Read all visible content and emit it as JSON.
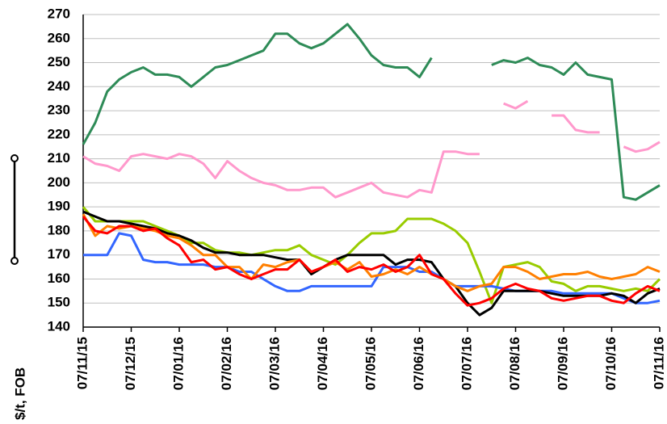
{
  "chart_data": {
    "type": "line",
    "y_label": "$/t, FOB",
    "categories": [
      "07/11/15",
      null,
      null,
      null,
      "07/12/15",
      null,
      null,
      null,
      "07/01/16",
      null,
      null,
      null,
      "07/02/16",
      null,
      null,
      null,
      "07/03/16",
      null,
      null,
      null,
      "07/04/16",
      null,
      null,
      null,
      "07/05/16",
      null,
      null,
      null,
      "07/06/16",
      null,
      null,
      null,
      "07/07/16",
      null,
      null,
      null,
      "07/08/16",
      null,
      null,
      null,
      "07/09/16",
      null,
      null,
      null,
      "07/10/16",
      null,
      null,
      null,
      "07/11/16"
    ],
    "ylim": [
      140,
      270
    ],
    "yticks": [
      140,
      150,
      160,
      170,
      180,
      190,
      200,
      210,
      220,
      230,
      240,
      250,
      260,
      270
    ],
    "grid": true,
    "series": [
      {
        "color": "#2e8b57",
        "values": [
          216,
          225,
          238,
          243,
          246,
          248,
          245,
          245,
          244,
          240,
          244,
          248,
          249,
          251,
          253,
          255,
          262,
          262,
          258,
          256,
          258,
          262,
          266,
          260,
          253,
          249,
          248,
          248,
          244,
          252,
          null,
          null,
          null,
          null,
          249,
          251,
          250,
          252,
          249,
          248,
          245,
          250,
          245,
          244,
          243,
          194,
          193,
          196,
          199
        ]
      },
      {
        "color": "#ff99cc",
        "values": [
          211,
          208,
          207,
          205,
          211,
          212,
          211,
          210,
          212,
          211,
          208,
          202,
          209,
          205,
          202,
          200,
          199,
          197,
          197,
          198,
          198,
          194,
          196,
          198,
          200,
          196,
          195,
          194,
          197,
          196,
          213,
          213,
          212,
          212,
          null,
          233,
          231,
          234,
          null,
          228,
          228,
          222,
          221,
          221,
          null,
          215,
          213,
          214,
          217
        ]
      },
      {
        "color": "#99cc00",
        "values": [
          190,
          184,
          184,
          184,
          184,
          184,
          182,
          180,
          178,
          175,
          175,
          172,
          171,
          171,
          170,
          171,
          172,
          172,
          174,
          170,
          168,
          166,
          170,
          175,
          179,
          179,
          180,
          185,
          185,
          185,
          183,
          180,
          175,
          163,
          150,
          165,
          166,
          167,
          165,
          159,
          158,
          155,
          157,
          157,
          156,
          155,
          156,
          155,
          160
        ]
      },
      {
        "color": "#3366ff",
        "values": [
          170,
          170,
          170,
          179,
          178,
          168,
          167,
          167,
          166,
          166,
          166,
          165,
          165,
          163,
          163,
          160,
          157,
          155,
          155,
          157,
          157,
          157,
          157,
          157,
          157,
          165,
          165,
          165,
          163,
          163,
          160,
          157,
          157,
          157,
          157,
          156,
          155,
          155,
          155,
          155,
          154,
          154,
          154,
          154,
          154,
          152,
          150,
          150,
          151
        ]
      },
      {
        "color": "#000000",
        "values": [
          188,
          186,
          184,
          184,
          183,
          182,
          181,
          179,
          178,
          176,
          173,
          171,
          171,
          170,
          170,
          170,
          169,
          168,
          168,
          162,
          165,
          168,
          170,
          170,
          170,
          170,
          166,
          168,
          168,
          167,
          160,
          157,
          150,
          145,
          148,
          155,
          155,
          155,
          155,
          154,
          153,
          153,
          153,
          153,
          154,
          153,
          150,
          154,
          156
        ]
      },
      {
        "color": "#ff7f00",
        "values": [
          187,
          178,
          182,
          181,
          182,
          181,
          180,
          178,
          177,
          174,
          170,
          170,
          165,
          165,
          160,
          166,
          165,
          167,
          168,
          163,
          165,
          167,
          164,
          167,
          161,
          162,
          164,
          162,
          165,
          162,
          160,
          157,
          155,
          157,
          158,
          165,
          165,
          163,
          160,
          161,
          162,
          162,
          163,
          161,
          160,
          161,
          162,
          165,
          163
        ]
      },
      {
        "color": "#ff0000",
        "values": [
          186,
          180,
          179,
          182,
          182,
          180,
          181,
          177,
          174,
          167,
          168,
          164,
          165,
          162,
          160,
          162,
          164,
          164,
          168,
          163,
          165,
          168,
          163,
          165,
          164,
          166,
          163,
          165,
          170,
          162,
          160,
          154,
          149,
          150,
          152,
          156,
          158,
          156,
          155,
          152,
          151,
          152,
          153,
          153,
          151,
          150,
          154,
          157,
          155
        ]
      }
    ]
  }
}
